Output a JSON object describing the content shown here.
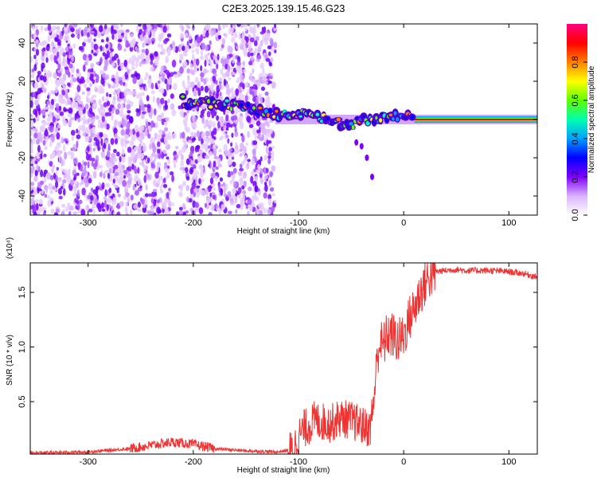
{
  "title": "C2E3.2025.139.15.46.G23",
  "chart_data": [
    {
      "type": "heatmap",
      "xlabel": "Height of straight line (km)",
      "ylabel": "Frequency (Hz)",
      "xlim": [
        -355,
        127
      ],
      "ylim": [
        -50,
        50
      ],
      "xticks": [
        -300,
        -200,
        -100,
        0,
        100
      ],
      "yticks": [
        -40,
        -20,
        0,
        20,
        40
      ],
      "colorbar": {
        "label": "Normalized spectral amplitude",
        "range": [
          0,
          1
        ],
        "ticks": [
          "0.0",
          "0.2",
          "0.4",
          "0.6",
          "0.8"
        ],
        "colors": [
          "#ffffff",
          "#d9b3ff",
          "#8000ff",
          "#0000ff",
          "#00a0ff",
          "#00ffb0",
          "#60ff00",
          "#ffff00",
          "#ff8000",
          "#ff0000",
          "#ff0080"
        ]
      },
      "features": {
        "noise_region_x": [
          -355,
          -122
        ],
        "noise_gap_x": [
          -222,
          -212
        ],
        "carrier_frequency_hz": 0,
        "carrier_start_x": -122,
        "carrier_points": [
          {
            "x": -210,
            "y": 10
          },
          {
            "x": -205,
            "y": 8
          },
          {
            "x": -195,
            "y": 9
          },
          {
            "x": -170,
            "y": 8
          },
          {
            "x": -160,
            "y": 7
          },
          {
            "x": -115,
            "y": 2
          },
          {
            "x": -100,
            "y": 3
          },
          {
            "x": -90,
            "y": 2
          },
          {
            "x": -80,
            "y": 1
          },
          {
            "x": -70,
            "y": 0
          },
          {
            "x": -60,
            "y": -2
          },
          {
            "x": -50,
            "y": -3
          },
          {
            "x": -40,
            "y": 0
          },
          {
            "x": -30,
            "y": 0
          },
          {
            "x": -20,
            "y": 1
          },
          {
            "x": -10,
            "y": 2
          },
          {
            "x": 0,
            "y": 2
          },
          {
            "x": 10,
            "y": 0
          },
          {
            "x": 127,
            "y": 0
          }
        ]
      }
    },
    {
      "type": "line",
      "xlabel": "Height of straight line (km)",
      "ylabel": "SNR (10 * v/v)",
      "y_multiplier": "(x10⁴)",
      "xlim": [
        -355,
        127
      ],
      "ylim": [
        0.02,
        1.77
      ],
      "xticks": [
        -300,
        -200,
        -100,
        0,
        100
      ],
      "yticks": [
        "0.5",
        "1.0",
        "1.5"
      ],
      "ytick_values": [
        0.5,
        1.0,
        1.5
      ],
      "color": "#ee3333",
      "series": [
        {
          "x": [
            -355,
            -300,
            -260,
            -240,
            -220,
            -200,
            -180,
            -150,
            -120,
            -105,
            -100,
            -95,
            -90,
            -85,
            -80,
            -70,
            -60,
            -50,
            -40,
            -32,
            -28,
            -25,
            -22,
            -20,
            -15,
            -10,
            -5,
            0,
            5,
            10,
            15,
            20,
            25,
            30,
            40,
            50,
            60,
            80,
            100,
            115,
            127
          ],
          "y": [
            0.03,
            0.04,
            0.07,
            0.1,
            0.13,
            0.11,
            0.07,
            0.05,
            0.04,
            0.06,
            0.18,
            0.25,
            0.28,
            0.33,
            0.32,
            0.3,
            0.35,
            0.33,
            0.28,
            0.25,
            0.55,
            0.95,
            1.05,
            1.0,
            1.12,
            1.1,
            1.05,
            1.1,
            1.25,
            1.35,
            1.48,
            1.58,
            1.65,
            1.69,
            1.7,
            1.71,
            1.7,
            1.7,
            1.69,
            1.67,
            1.64
          ]
        }
      ]
    }
  ]
}
